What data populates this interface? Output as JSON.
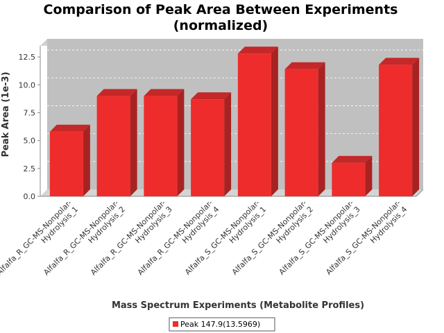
{
  "chart_data": {
    "type": "bar",
    "title_line1": "Comparison of Peak Area Between Experiments",
    "title_line2": "(normalized)",
    "xlabel": "Mass Spectrum Experiments (Metabolite Profiles)",
    "ylabel": "Peak Area (1e-3)",
    "ylim": [
      0,
      13.5
    ],
    "yticks": [
      "0.0",
      "2.5",
      "5.0",
      "7.5",
      "10.0",
      "12.5"
    ],
    "ytick_values": [
      0,
      2.5,
      5,
      7.5,
      10,
      12.5
    ],
    "categories": [
      [
        "Alfalfa_R_GC-MS-Nonpolar-",
        "Hydrolysis_1"
      ],
      [
        "Alfalfa_R_GC-MS-Nonpolar-",
        "Hydrolysis_2"
      ],
      [
        "Alfalfa_R_GC-MS-Nonpolar-",
        "Hydrolysis_3"
      ],
      [
        "Alfalfa_R_GC-MS-Nonpolar-",
        "Hydrolysis_4"
      ],
      [
        "Alfalfa_S_GC-MS-Nonpolar-",
        "Hydrolysis_1"
      ],
      [
        "Alfalfa_S_GC-MS-Nonpolar-",
        "Hydrolysis_2"
      ],
      [
        "Alfalfa_S_GC-MS-Nonpolar-",
        "Hydrolysis_3"
      ],
      [
        "Alfalfa_S_GC-MS-Nonpolar-",
        "Hydrolysis_4"
      ]
    ],
    "series": [
      {
        "name": "Peak 147.9(13.5969)",
        "values": [
          5.8,
          9.0,
          9.0,
          8.7,
          12.8,
          11.4,
          3.0,
          11.8
        ]
      }
    ],
    "grid": true,
    "legend_position": "bottom",
    "colors": {
      "bar_front": "#ee2c2c",
      "bar_side": "#a82222",
      "bar_top": "#c42828",
      "plot_bg": "#c0c0c0",
      "plot_floor": "#d4d4d4",
      "grid": "#ffffff"
    }
  }
}
